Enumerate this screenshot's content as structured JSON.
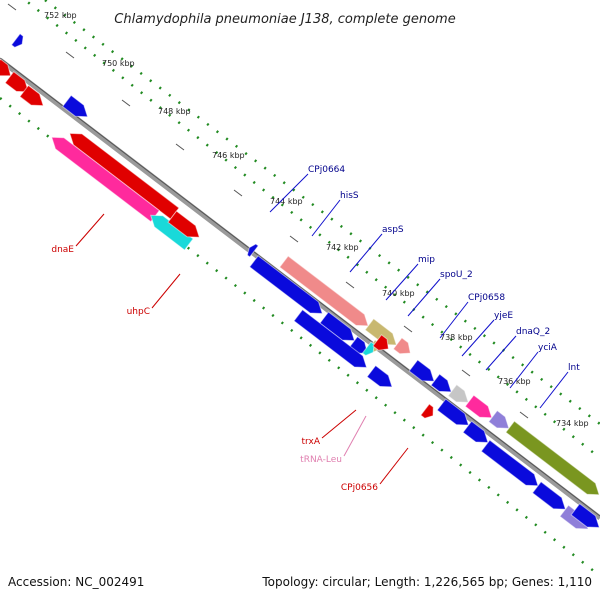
{
  "map": {
    "title": "Chlamydophila pneumoniae J138, complete genome",
    "accession": "Accession: NC_002491",
    "summary": "Topology: circular; Length: 1,226,565 bp; Genes: 1,110"
  },
  "ticks": [
    "752 kbp",
    "750 kbp",
    "748 kbp",
    "746 kbp",
    "744 kbp",
    "742 kbp",
    "740 kbp",
    "738 kbp",
    "736 kbp",
    "734 kbp"
  ],
  "genes_forward": [
    "CPj0664",
    "hisS",
    "aspS",
    "mip",
    "spoU_2",
    "CPj0658",
    "yjeE",
    "dnaQ_2",
    "yciA",
    "lnt"
  ],
  "genes_reverse": [
    "dnaE",
    "uhpC",
    "trxA",
    "tRNA-Leu",
    "CPj0656"
  ],
  "colors": {
    "blue": "#0a0adc",
    "red": "#e00000",
    "magenta": "#ff2a9d",
    "cyan": "#19d9d9",
    "salmon": "#f08a8a",
    "olive": "#7a9620",
    "khaki": "#c8b870",
    "grey": "#c6c6c6",
    "lavender": "#8f7fd9",
    "backbone": "#808080",
    "dots": "#228b22",
    "fwd_label": "#00008b",
    "rev_label": "#cc0000",
    "trna_label": "#e080b0"
  }
}
